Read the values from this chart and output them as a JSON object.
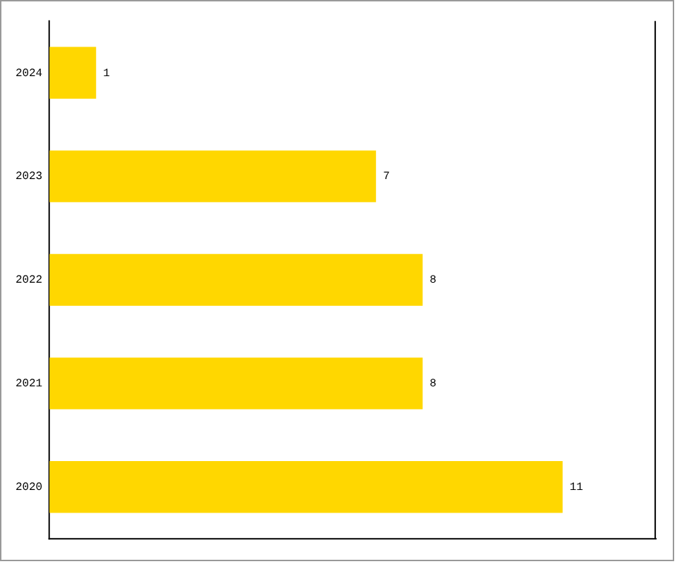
{
  "chart_data": {
    "type": "bar",
    "orientation": "horizontal",
    "categories": [
      "2024",
      "2023",
      "2022",
      "2021",
      "2020"
    ],
    "values": [
      1,
      7,
      8,
      8,
      11
    ],
    "color": "#ffd700",
    "xlim": [
      0,
      13
    ],
    "data_labels": true,
    "tick_labels": "y"
  }
}
